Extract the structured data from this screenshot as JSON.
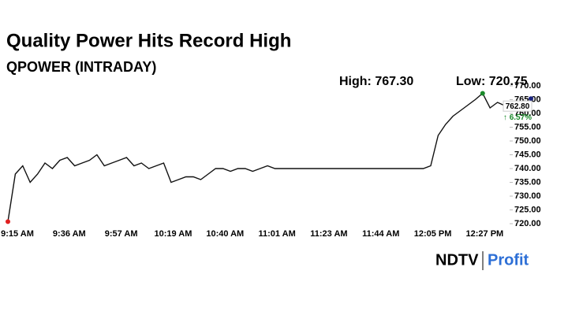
{
  "chart_data": {
    "type": "line",
    "title": "Quality Power Hits Record High",
    "subtitle": "QPOWER (INTRADAY)",
    "high_label": "High: 767.30",
    "low_label": "Low: 720.75",
    "last_label": "762.80",
    "change_label": "↑ 6.57%",
    "categories": [
      "9:15 AM",
      null,
      null,
      null,
      null,
      null,
      null,
      "9:36 AM",
      null,
      null,
      null,
      null,
      null,
      null,
      "9:57 AM",
      null,
      null,
      null,
      null,
      null,
      null,
      "10:19 AM",
      null,
      null,
      null,
      null,
      null,
      null,
      "10:40 AM",
      null,
      null,
      null,
      null,
      null,
      null,
      "11:01 AM",
      null,
      null,
      null,
      null,
      null,
      null,
      "11:23 AM",
      null,
      null,
      null,
      null,
      null,
      null,
      "11:44 AM",
      null,
      null,
      null,
      null,
      null,
      null,
      "12:05 PM",
      null,
      null,
      null,
      null,
      null,
      null,
      "12:27 PM",
      null,
      null,
      null,
      null
    ],
    "series": [
      {
        "name": "QPOWER",
        "color": "#111111",
        "values": [
          720.75,
          738,
          741,
          735,
          738,
          742,
          740,
          743,
          744,
          741,
          742,
          743,
          745,
          741,
          742,
          743,
          744,
          741,
          742,
          740,
          741,
          742,
          735,
          736,
          737,
          737,
          736,
          738,
          740,
          740,
          739,
          740,
          740,
          739,
          740,
          741,
          740,
          740,
          740,
          740,
          740,
          740,
          740,
          740,
          740,
          740,
          740,
          740,
          740,
          740,
          740,
          740,
          740,
          740,
          740,
          740,
          740,
          741,
          752,
          756,
          759,
          761,
          763,
          765,
          767.3,
          762,
          764,
          762.8
        ]
      }
    ],
    "high_color": "#1a8a2a",
    "low_color": "#e02020",
    "last_color": "#1a237e",
    "ylim": [
      720,
      770
    ],
    "yticks": [
      {
        "value": 720,
        "label": "720.00"
      },
      {
        "value": 725,
        "label": "725.00"
      },
      {
        "value": 730,
        "label": "730.00"
      },
      {
        "value": 735,
        "label": "735.00"
      },
      {
        "value": 740,
        "label": "740.00"
      },
      {
        "value": 745,
        "label": "745.00"
      },
      {
        "value": 750,
        "label": "750.00"
      },
      {
        "value": 755,
        "label": "755.00"
      },
      {
        "value": 760,
        "label": "760.00"
      },
      {
        "value": 765,
        "label": "765.00"
      },
      {
        "value": 770,
        "label": "770.00"
      }
    ]
  },
  "logo": {
    "left": "NDTV",
    "right": "Profit"
  }
}
